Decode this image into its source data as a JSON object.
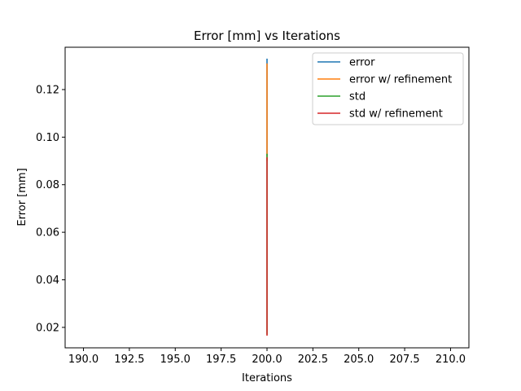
{
  "chart_data": {
    "type": "line",
    "title": "Error [mm] vs Iterations",
    "xlabel": "Iterations",
    "ylabel": "Error [mm]",
    "xlim": [
      189.0,
      211.0
    ],
    "ylim": [
      0.0114,
      0.1378
    ],
    "xticks": [
      190.0,
      192.5,
      195.0,
      197.5,
      200.0,
      202.5,
      205.0,
      207.5,
      210.0
    ],
    "xtick_labels": [
      "190.0",
      "192.5",
      "195.0",
      "197.5",
      "200.0",
      "202.5",
      "205.0",
      "207.5",
      "210.0"
    ],
    "yticks": [
      0.02,
      0.04,
      0.06,
      0.08,
      0.1,
      0.12
    ],
    "ytick_labels": [
      "0.02",
      "0.04",
      "0.06",
      "0.08",
      "0.10",
      "0.12"
    ],
    "grid": false,
    "legend_position": "top-right",
    "series": [
      {
        "name": "error",
        "color": "#1f77b4",
        "x": [
          200,
          200
        ],
        "y": [
          0.092,
          0.133
        ]
      },
      {
        "name": "error w/ refinement",
        "color": "#ff7f0e",
        "x": [
          200,
          200
        ],
        "y": [
          0.09,
          0.131
        ]
      },
      {
        "name": "std",
        "color": "#2ca02c",
        "x": [
          200,
          200
        ],
        "y": [
          0.017,
          0.093
        ]
      },
      {
        "name": "std w/ refinement",
        "color": "#d62728",
        "x": [
          200,
          200
        ],
        "y": [
          0.0165,
          0.0915
        ]
      }
    ]
  }
}
